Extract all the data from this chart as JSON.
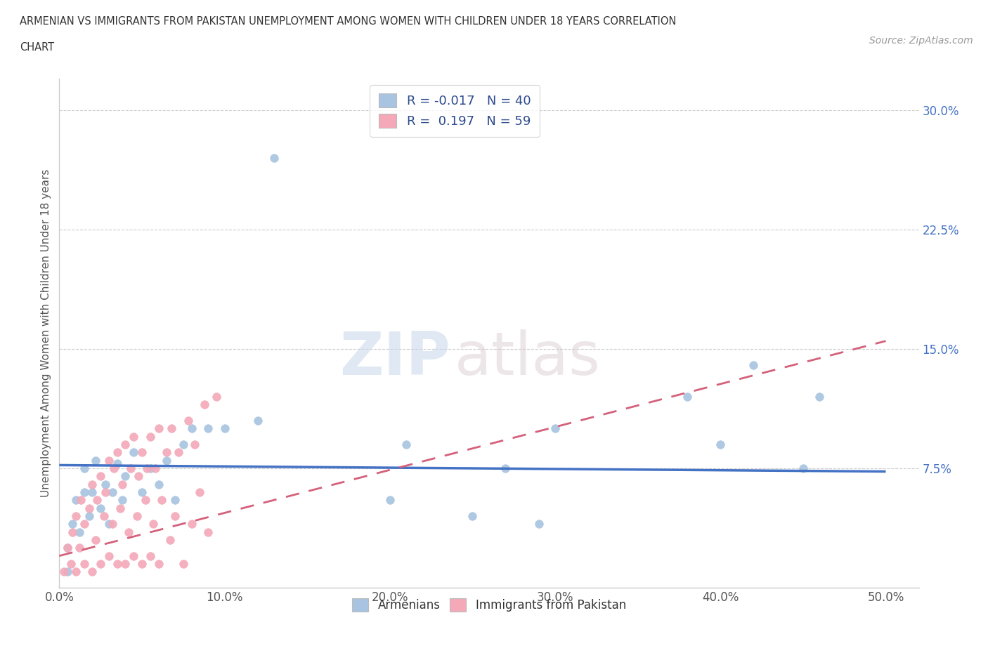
{
  "title_line1": "ARMENIAN VS IMMIGRANTS FROM PAKISTAN UNEMPLOYMENT AMONG WOMEN WITH CHILDREN UNDER 18 YEARS CORRELATION",
  "title_line2": "CHART",
  "source_text": "Source: ZipAtlas.com",
  "ylabel": "Unemployment Among Women with Children Under 18 years",
  "ylim": [
    0.0,
    0.32
  ],
  "xlim": [
    0.0,
    0.52
  ],
  "yticks": [
    0.0,
    0.075,
    0.15,
    0.225,
    0.3
  ],
  "ytick_labels": [
    "",
    "7.5%",
    "15.0%",
    "22.5%",
    "30.0%"
  ],
  "xticks": [
    0.0,
    0.1,
    0.2,
    0.3,
    0.4,
    0.5
  ],
  "xtick_labels": [
    "0.0%",
    "10.0%",
    "20.0%",
    "30.0%",
    "40.0%",
    "50.0%"
  ],
  "armenian_color": "#a8c4e0",
  "pakistan_color": "#f4a8b8",
  "armenian_R": -0.017,
  "armenian_N": 40,
  "pakistan_R": 0.197,
  "pakistan_N": 59,
  "trend_armenian_color": "#4472c4",
  "trend_pakistan_color": "#d4607a",
  "watermark_zip": "ZIP",
  "watermark_atlas": "atlas",
  "legend_label_armenian": "Armenians",
  "legend_label_pakistan": "Immigrants from Pakistan",
  "armenian_x": [
    0.005,
    0.005,
    0.008,
    0.01,
    0.012,
    0.015,
    0.015,
    0.018,
    0.02,
    0.022,
    0.025,
    0.028,
    0.03,
    0.032,
    0.035,
    0.038,
    0.04,
    0.045,
    0.05,
    0.055,
    0.06,
    0.065,
    0.07,
    0.075,
    0.08,
    0.09,
    0.1,
    0.12,
    0.13,
    0.2,
    0.21,
    0.25,
    0.27,
    0.29,
    0.3,
    0.38,
    0.4,
    0.42,
    0.45,
    0.46
  ],
  "armenian_y": [
    0.01,
    0.025,
    0.04,
    0.055,
    0.035,
    0.06,
    0.075,
    0.045,
    0.06,
    0.08,
    0.05,
    0.065,
    0.04,
    0.06,
    0.078,
    0.055,
    0.07,
    0.085,
    0.06,
    0.075,
    0.065,
    0.08,
    0.055,
    0.09,
    0.1,
    0.1,
    0.1,
    0.105,
    0.27,
    0.055,
    0.09,
    0.045,
    0.075,
    0.04,
    0.1,
    0.12,
    0.09,
    0.14,
    0.075,
    0.12
  ],
  "pakistan_x": [
    0.003,
    0.005,
    0.007,
    0.008,
    0.01,
    0.01,
    0.012,
    0.013,
    0.015,
    0.015,
    0.018,
    0.02,
    0.02,
    0.022,
    0.023,
    0.025,
    0.025,
    0.027,
    0.028,
    0.03,
    0.03,
    0.032,
    0.033,
    0.035,
    0.035,
    0.037,
    0.038,
    0.04,
    0.04,
    0.042,
    0.043,
    0.045,
    0.045,
    0.047,
    0.048,
    0.05,
    0.05,
    0.052,
    0.053,
    0.055,
    0.055,
    0.057,
    0.058,
    0.06,
    0.06,
    0.062,
    0.065,
    0.067,
    0.068,
    0.07,
    0.072,
    0.075,
    0.078,
    0.08,
    0.082,
    0.085,
    0.088,
    0.09,
    0.095
  ],
  "pakistan_y": [
    0.01,
    0.025,
    0.015,
    0.035,
    0.01,
    0.045,
    0.025,
    0.055,
    0.015,
    0.04,
    0.05,
    0.01,
    0.065,
    0.03,
    0.055,
    0.015,
    0.07,
    0.045,
    0.06,
    0.02,
    0.08,
    0.04,
    0.075,
    0.015,
    0.085,
    0.05,
    0.065,
    0.015,
    0.09,
    0.035,
    0.075,
    0.02,
    0.095,
    0.045,
    0.07,
    0.015,
    0.085,
    0.055,
    0.075,
    0.02,
    0.095,
    0.04,
    0.075,
    0.015,
    0.1,
    0.055,
    0.085,
    0.03,
    0.1,
    0.045,
    0.085,
    0.015,
    0.105,
    0.04,
    0.09,
    0.06,
    0.115,
    0.035,
    0.12
  ],
  "trend_arm_x0": 0.0,
  "trend_arm_x1": 0.5,
  "trend_arm_y0": 0.077,
  "trend_arm_y1": 0.073,
  "trend_pak_x0": 0.0,
  "trend_pak_x1": 0.5,
  "trend_pak_y0": 0.02,
  "trend_pak_y1": 0.155,
  "background_color": "#ffffff",
  "grid_color": "#cccccc",
  "spine_color": "#cccccc",
  "ylabel_color": "#555555",
  "ytick_color": "#4472c4",
  "xtick_color": "#555555",
  "title_color": "#333333",
  "source_color": "#999999"
}
